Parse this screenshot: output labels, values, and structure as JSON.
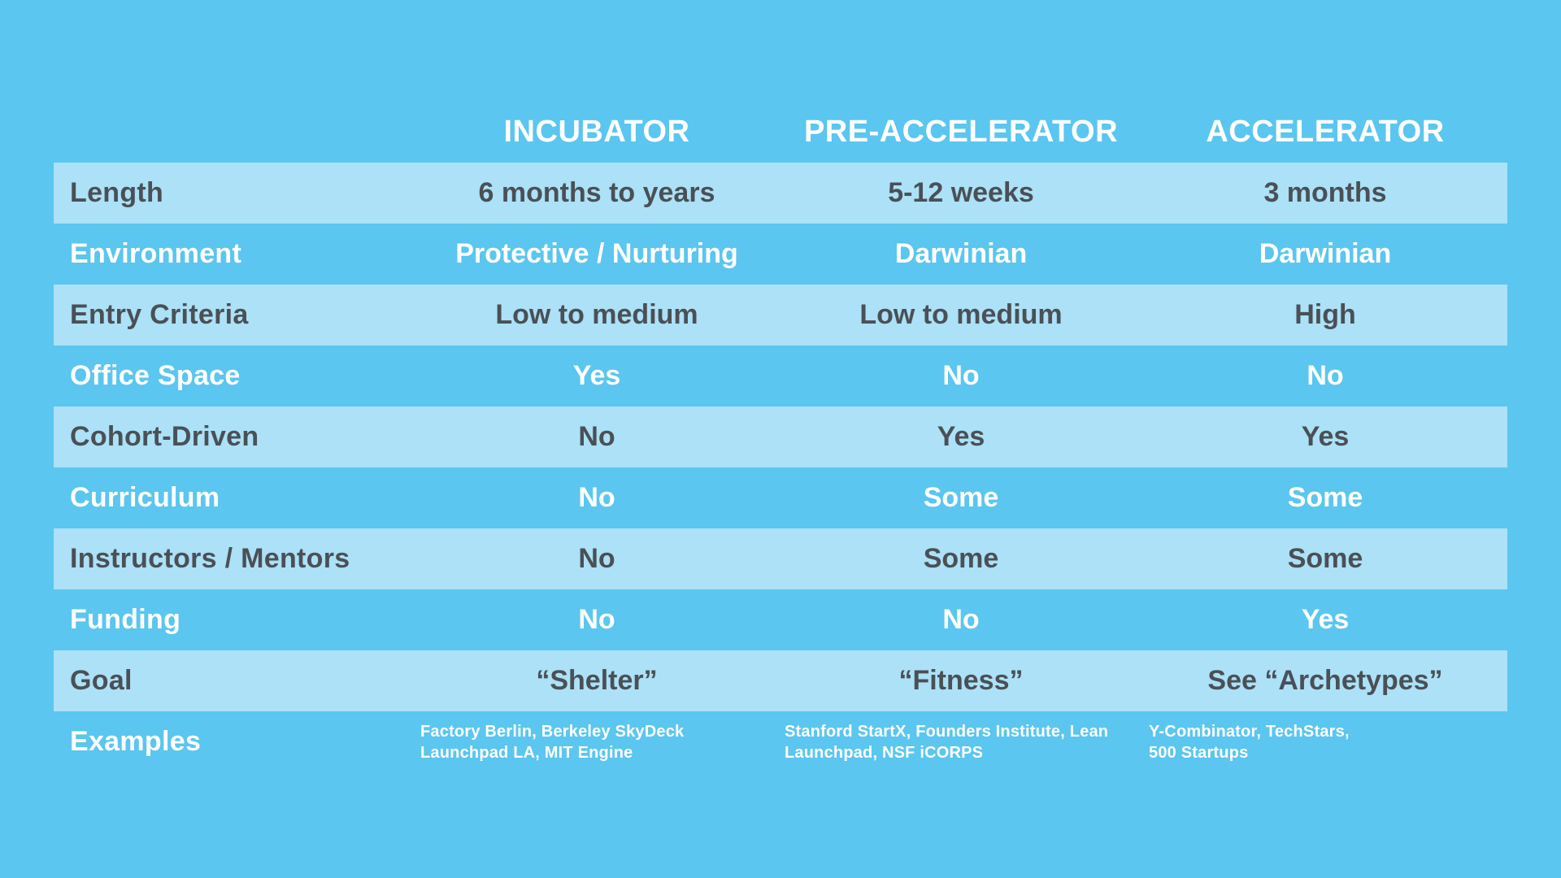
{
  "colors": {
    "background": "#5bc6ef",
    "band": "#ace1f7",
    "dark_text": "#4a5056",
    "light_text": "#ffffff"
  },
  "chart_data": {
    "type": "table",
    "title": "",
    "legend": "none",
    "columns": [
      "",
      "INCUBATOR",
      "PRE-ACCELERATOR",
      "ACCELERATOR"
    ],
    "rows": [
      {
        "label": "Length",
        "values": [
          "6 months to years",
          "5-12 weeks",
          "3 months"
        ]
      },
      {
        "label": "Environment",
        "values": [
          "Protective / Nurturing",
          "Darwinian",
          "Darwinian"
        ]
      },
      {
        "label": "Entry Criteria",
        "values": [
          "Low to medium",
          "Low to medium",
          "High"
        ]
      },
      {
        "label": "Office Space",
        "values": [
          "Yes",
          "No",
          "No"
        ]
      },
      {
        "label": "Cohort-Driven",
        "values": [
          "No",
          "Yes",
          "Yes"
        ]
      },
      {
        "label": "Curriculum",
        "values": [
          "No",
          "Some",
          "Some"
        ]
      },
      {
        "label": "Instructors / Mentors",
        "values": [
          "No",
          "Some",
          "Some"
        ]
      },
      {
        "label": "Funding",
        "values": [
          "No",
          "No",
          "Yes"
        ]
      },
      {
        "label": "Goal",
        "values": [
          "“Shelter”",
          "“Fitness”",
          "See “Archetypes”"
        ]
      },
      {
        "label": "Examples",
        "values": [
          "Factory Berlin, Berkeley SkyDeck\nLaunchpad LA, MIT Engine",
          "Stanford StartX, Founders Institute, Lean\nLaunchpad, NSF iCORPS",
          "Y-Combinator, TechStars,\n500 Startups"
        ]
      }
    ]
  }
}
